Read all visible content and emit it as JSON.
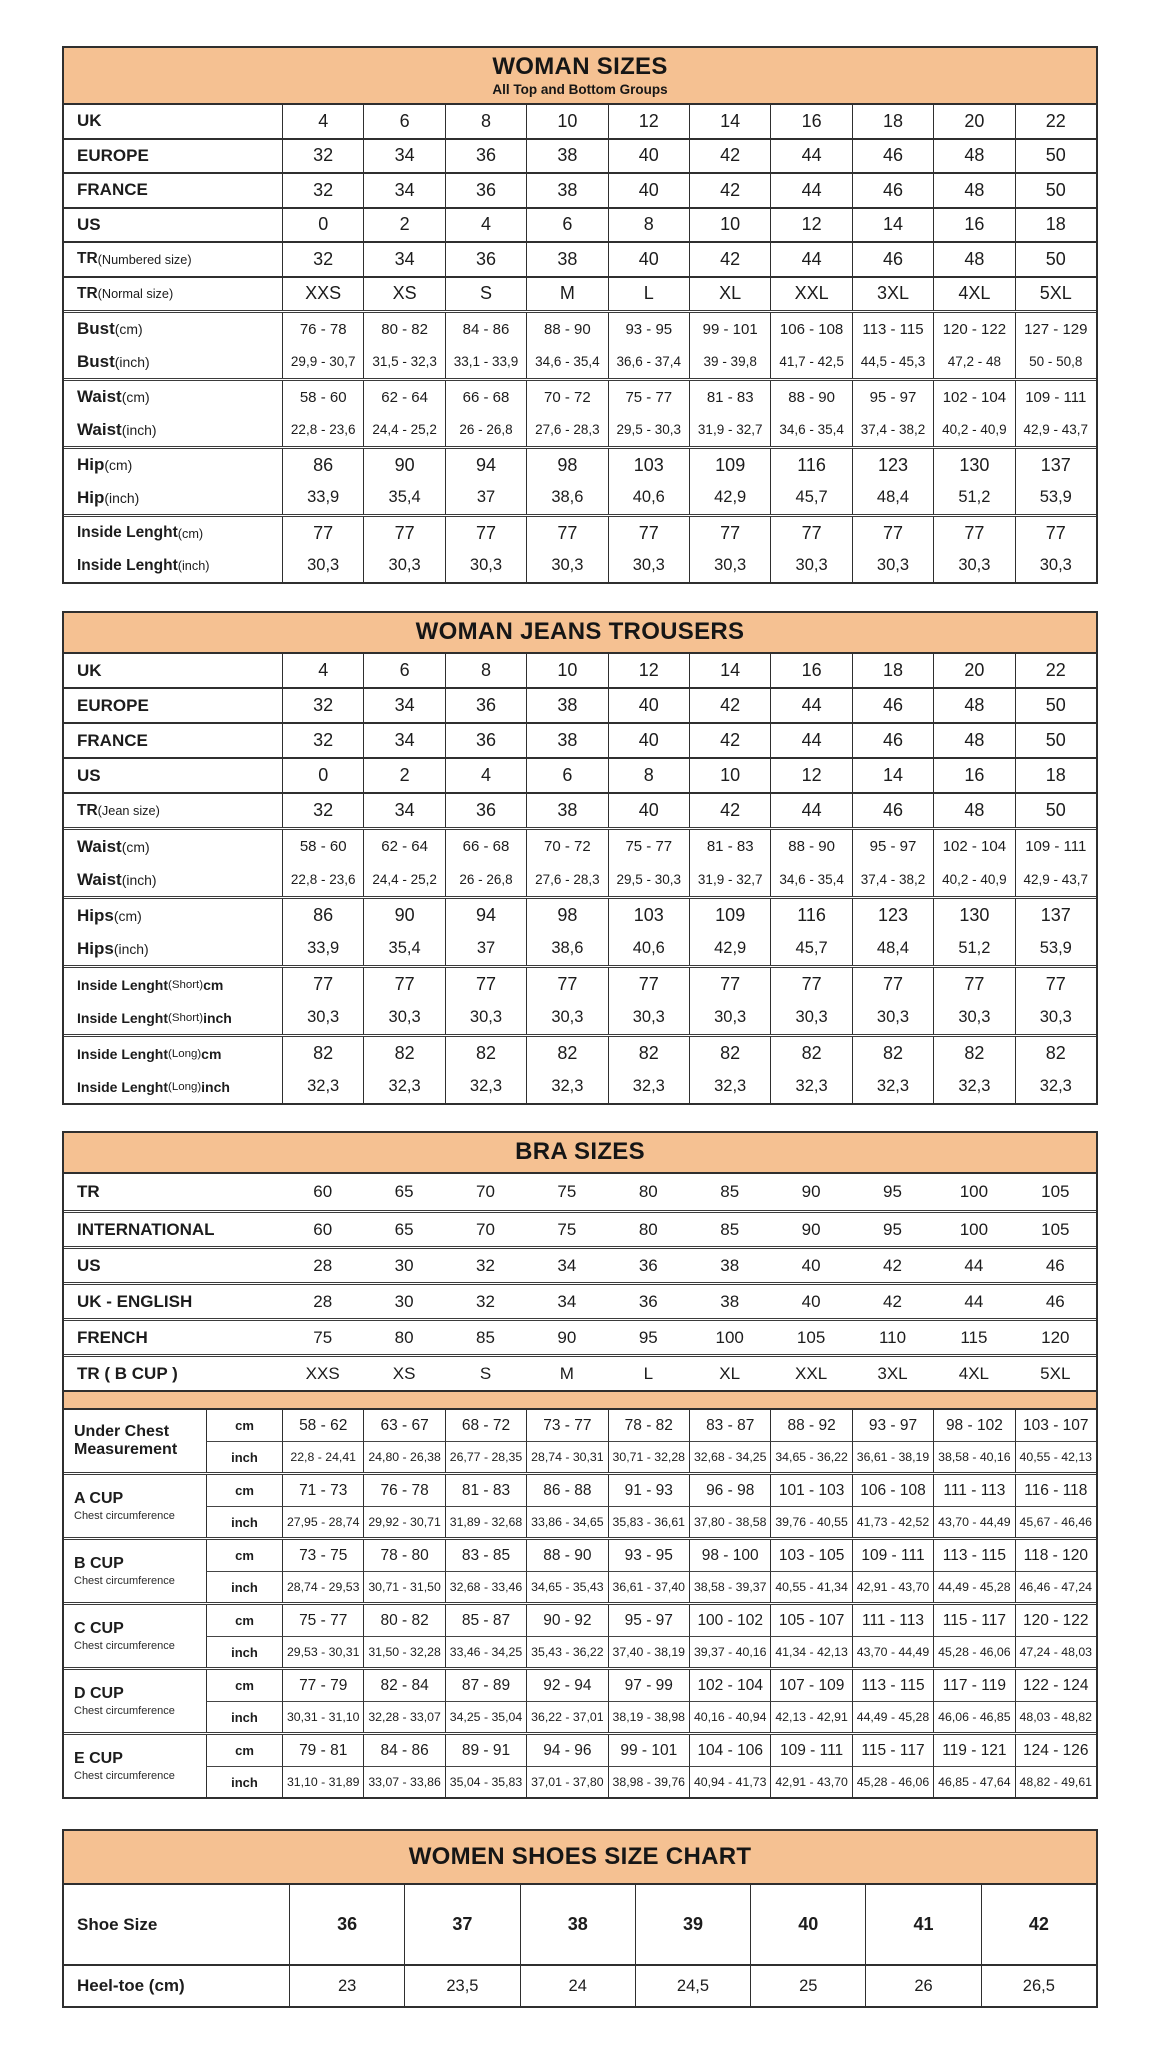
{
  "page": {
    "background": "#ffffff",
    "accent_color": "#f5c192",
    "border_color": "#2f2f2f"
  },
  "tables": {
    "woman_sizes": {
      "title": "WOMAN SIZES",
      "subtitle": "All Top and Bottom Groups",
      "groups": [
        [
          {
            "label": "UK",
            "values": [
              "4",
              "6",
              "8",
              "10",
              "12",
              "14",
              "16",
              "18",
              "20",
              "22"
            ]
          }
        ],
        [
          {
            "label": "EUROPE",
            "values": [
              "32",
              "34",
              "36",
              "38",
              "40",
              "42",
              "44",
              "46",
              "48",
              "50"
            ]
          }
        ],
        [
          {
            "label": "FRANCE",
            "values": [
              "32",
              "34",
              "36",
              "38",
              "40",
              "42",
              "44",
              "46",
              "48",
              "50"
            ]
          }
        ],
        [
          {
            "label": "US",
            "values": [
              "0",
              "2",
              "4",
              "6",
              "8",
              "10",
              "12",
              "14",
              "16",
              "18"
            ]
          }
        ],
        [
          {
            "label": "TR (Numbered size)",
            "values": [
              "32",
              "34",
              "36",
              "38",
              "40",
              "42",
              "44",
              "46",
              "48",
              "50"
            ]
          }
        ],
        [
          {
            "label": "TR (Normal size)",
            "values": [
              "XXS",
              "XS",
              "S",
              "M",
              "L",
              "XL",
              "XXL",
              "3XL",
              "4XL",
              "5XL"
            ]
          }
        ],
        [
          {
            "label": "Bust (cm)",
            "values": [
              "76 - 78",
              "80 - 82",
              "84 - 86",
              "88 - 90",
              "93 - 95",
              "99 - 101",
              "106 - 108",
              "113 - 115",
              "120 - 122",
              "127 - 129"
            ]
          },
          {
            "label": "Bust (inch)",
            "values": [
              "29,9 - 30,7",
              "31,5 - 32,3",
              "33,1 - 33,9",
              "34,6 - 35,4",
              "36,6 - 37,4",
              "39 - 39,8",
              "41,7 - 42,5",
              "44,5 - 45,3",
              "47,2 - 48",
              "50 - 50,8"
            ]
          }
        ],
        [
          {
            "label": "Waist (cm)",
            "values": [
              "58 - 60",
              "62 - 64",
              "66 - 68",
              "70 - 72",
              "75 - 77",
              "81 - 83",
              "88 - 90",
              "95 - 97",
              "102 - 104",
              "109 - 111"
            ]
          },
          {
            "label": "Waist (inch)",
            "values": [
              "22,8 - 23,6",
              "24,4 - 25,2",
              "26 - 26,8",
              "27,6 - 28,3",
              "29,5 - 30,3",
              "31,9 - 32,7",
              "34,6 - 35,4",
              "37,4 - 38,2",
              "40,2 - 40,9",
              "42,9 - 43,7"
            ]
          }
        ],
        [
          {
            "label": "Hip (cm)",
            "values": [
              "86",
              "90",
              "94",
              "98",
              "103",
              "109",
              "116",
              "123",
              "130",
              "137"
            ]
          },
          {
            "label": "Hip (inch)",
            "values": [
              "33,9",
              "35,4",
              "37",
              "38,6",
              "40,6",
              "42,9",
              "45,7",
              "48,4",
              "51,2",
              "53,9"
            ]
          }
        ],
        [
          {
            "label": "Inside Lenght (cm)",
            "values": [
              "77",
              "77",
              "77",
              "77",
              "77",
              "77",
              "77",
              "77",
              "77",
              "77"
            ]
          },
          {
            "label": "Inside Lenght (inch)",
            "values": [
              "30,3",
              "30,3",
              "30,3",
              "30,3",
              "30,3",
              "30,3",
              "30,3",
              "30,3",
              "30,3",
              "30,3"
            ]
          }
        ]
      ]
    },
    "woman_jeans": {
      "title": "WOMAN JEANS TROUSERS",
      "groups": [
        [
          {
            "label": "UK",
            "values": [
              "4",
              "6",
              "8",
              "10",
              "12",
              "14",
              "16",
              "18",
              "20",
              "22"
            ]
          }
        ],
        [
          {
            "label": "EUROPE",
            "values": [
              "32",
              "34",
              "36",
              "38",
              "40",
              "42",
              "44",
              "46",
              "48",
              "50"
            ]
          }
        ],
        [
          {
            "label": "FRANCE",
            "values": [
              "32",
              "34",
              "36",
              "38",
              "40",
              "42",
              "44",
              "46",
              "48",
              "50"
            ]
          }
        ],
        [
          {
            "label": "US",
            "values": [
              "0",
              "2",
              "4",
              "6",
              "8",
              "10",
              "12",
              "14",
              "16",
              "18"
            ]
          }
        ],
        [
          {
            "label": "TR (Jean size)",
            "values": [
              "32",
              "34",
              "36",
              "38",
              "40",
              "42",
              "44",
              "46",
              "48",
              "50"
            ]
          }
        ],
        [
          {
            "label": "Waist (cm)",
            "values": [
              "58 - 60",
              "62 - 64",
              "66 - 68",
              "70 - 72",
              "75 - 77",
              "81 - 83",
              "88 - 90",
              "95 - 97",
              "102 - 104",
              "109 - 111"
            ]
          },
          {
            "label": "Waist (inch)",
            "values": [
              "22,8 - 23,6",
              "24,4 - 25,2",
              "26 - 26,8",
              "27,6 - 28,3",
              "29,5 - 30,3",
              "31,9 - 32,7",
              "34,6 - 35,4",
              "37,4 - 38,2",
              "40,2 - 40,9",
              "42,9 - 43,7"
            ]
          }
        ],
        [
          {
            "label": "Hips (cm)",
            "values": [
              "86",
              "90",
              "94",
              "98",
              "103",
              "109",
              "116",
              "123",
              "130",
              "137"
            ]
          },
          {
            "label": "Hips (inch)",
            "values": [
              "33,9",
              "35,4",
              "37",
              "38,6",
              "40,6",
              "42,9",
              "45,7",
              "48,4",
              "51,2",
              "53,9"
            ]
          }
        ],
        [
          {
            "label": "Inside Lenght (Short) cm",
            "values": [
              "77",
              "77",
              "77",
              "77",
              "77",
              "77",
              "77",
              "77",
              "77",
              "77"
            ]
          },
          {
            "label": "Inside Lenght (Short) inch",
            "values": [
              "30,3",
              "30,3",
              "30,3",
              "30,3",
              "30,3",
              "30,3",
              "30,3",
              "30,3",
              "30,3",
              "30,3"
            ]
          }
        ],
        [
          {
            "label": "Inside Lenght (Long) cm",
            "values": [
              "82",
              "82",
              "82",
              "82",
              "82",
              "82",
              "82",
              "82",
              "82",
              "82"
            ]
          },
          {
            "label": "Inside Lenght (Long) inch",
            "values": [
              "32,3",
              "32,3",
              "32,3",
              "32,3",
              "32,3",
              "32,3",
              "32,3",
              "32,3",
              "32,3",
              "32,3"
            ]
          }
        ]
      ]
    },
    "bra": {
      "title": "BRA SIZES",
      "conversion_rows": [
        {
          "label": "TR",
          "values": [
            "60",
            "65",
            "70",
            "75",
            "80",
            "85",
            "90",
            "95",
            "100",
            "105"
          ]
        },
        {
          "label": "INTERNATIONAL",
          "values": [
            "60",
            "65",
            "70",
            "75",
            "80",
            "85",
            "90",
            "95",
            "100",
            "105"
          ]
        },
        {
          "label": "US",
          "values": [
            "28",
            "30",
            "32",
            "34",
            "36",
            "38",
            "40",
            "42",
            "44",
            "46"
          ]
        },
        {
          "label": "UK - ENGLISH",
          "values": [
            "28",
            "30",
            "32",
            "34",
            "36",
            "38",
            "40",
            "42",
            "44",
            "46"
          ]
        },
        {
          "label": "FRENCH",
          "values": [
            "75",
            "80",
            "85",
            "90",
            "95",
            "100",
            "105",
            "110",
            "115",
            "120"
          ]
        },
        {
          "label": "TR ( B CUP )",
          "values": [
            "XXS",
            "XS",
            "S",
            "M",
            "L",
            "XL",
            "XXL",
            "3XL",
            "4XL",
            "5XL"
          ]
        }
      ],
      "units": {
        "cm": "cm",
        "inch": "inch"
      },
      "cup_groups": [
        {
          "label": "Under Chest Measurement",
          "sublabel": "",
          "cm": [
            "58 - 62",
            "63 - 67",
            "68 - 72",
            "73 - 77",
            "78 - 82",
            "83 - 87",
            "88 - 92",
            "93 - 97",
            "98 - 102",
            "103 - 107"
          ],
          "inch": [
            "22,8 - 24,41",
            "24,80 - 26,38",
            "26,77 - 28,35",
            "28,74 - 30,31",
            "30,71 - 32,28",
            "32,68 - 34,25",
            "34,65 - 36,22",
            "36,61 - 38,19",
            "38,58 - 40,16",
            "40,55 - 42,13"
          ]
        },
        {
          "label": "A CUP",
          "sublabel": "Chest circumference",
          "cm": [
            "71 - 73",
            "76 - 78",
            "81 - 83",
            "86 - 88",
            "91 - 93",
            "96 - 98",
            "101 - 103",
            "106 - 108",
            "111 - 113",
            "116 - 118"
          ],
          "inch": [
            "27,95 - 28,74",
            "29,92 - 30,71",
            "31,89 - 32,68",
            "33,86 - 34,65",
            "35,83 - 36,61",
            "37,80 - 38,58",
            "39,76 - 40,55",
            "41,73 - 42,52",
            "43,70 - 44,49",
            "45,67 - 46,46"
          ]
        },
        {
          "label": "B CUP",
          "sublabel": "Chest circumference",
          "cm": [
            "73 - 75",
            "78 - 80",
            "83 - 85",
            "88 - 90",
            "93 - 95",
            "98 - 100",
            "103 - 105",
            "109 - 111",
            "113 - 115",
            "118 - 120"
          ],
          "inch": [
            "28,74 - 29,53",
            "30,71 - 31,50",
            "32,68 - 33,46",
            "34,65 - 35,43",
            "36,61 - 37,40",
            "38,58 - 39,37",
            "40,55 - 41,34",
            "42,91 - 43,70",
            "44,49 - 45,28",
            "46,46 - 47,24"
          ]
        },
        {
          "label": "C CUP",
          "sublabel": "Chest circumference",
          "cm": [
            "75 - 77",
            "80 - 82",
            "85 - 87",
            "90 - 92",
            "95 - 97",
            "100 - 102",
            "105 - 107",
            "111 - 113",
            "115 - 117",
            "120 - 122"
          ],
          "inch": [
            "29,53 - 30,31",
            "31,50 - 32,28",
            "33,46 - 34,25",
            "35,43 - 36,22",
            "37,40 - 38,19",
            "39,37 - 40,16",
            "41,34 - 42,13",
            "43,70 - 44,49",
            "45,28 - 46,06",
            "47,24 - 48,03"
          ]
        },
        {
          "label": "D CUP",
          "sublabel": "Chest circumference",
          "cm": [
            "77 - 79",
            "82 - 84",
            "87 - 89",
            "92 - 94",
            "97 - 99",
            "102 - 104",
            "107 - 109",
            "113 - 115",
            "117 - 119",
            "122 - 124"
          ],
          "inch": [
            "30,31 - 31,10",
            "32,28 - 33,07",
            "34,25 - 35,04",
            "36,22 - 37,01",
            "38,19 - 38,98",
            "40,16 - 40,94",
            "42,13 - 42,91",
            "44,49 - 45,28",
            "46,06 - 46,85",
            "48,03 - 48,82"
          ]
        },
        {
          "label": "E CUP",
          "sublabel": "Chest circumference",
          "cm": [
            "79 - 81",
            "84 - 86",
            "89 - 91",
            "94 - 96",
            "99 - 101",
            "104 - 106",
            "109 - 111",
            "115 - 117",
            "119 - 121",
            "124 - 126"
          ],
          "inch": [
            "31,10 - 31,89",
            "33,07 - 33,86",
            "35,04 - 35,83",
            "37,01 - 37,80",
            "38,98 - 39,76",
            "40,94 - 41,73",
            "42,91 - 43,70",
            "45,28 - 46,06",
            "46,85 - 47,64",
            "48,82 - 49,61"
          ]
        }
      ]
    },
    "shoes": {
      "title": "WOMEN SHOES SIZE CHART",
      "groups": [
        [
          {
            "label": "Shoe Size",
            "values": [
              "36",
              "37",
              "38",
              "39",
              "40",
              "41",
              "42"
            ],
            "strong": true
          }
        ],
        [
          {
            "label": "Heel-toe (cm)",
            "values": [
              "23",
              "23,5",
              "24",
              "24,5",
              "25",
              "26",
              "26,5"
            ]
          }
        ]
      ]
    }
  }
}
